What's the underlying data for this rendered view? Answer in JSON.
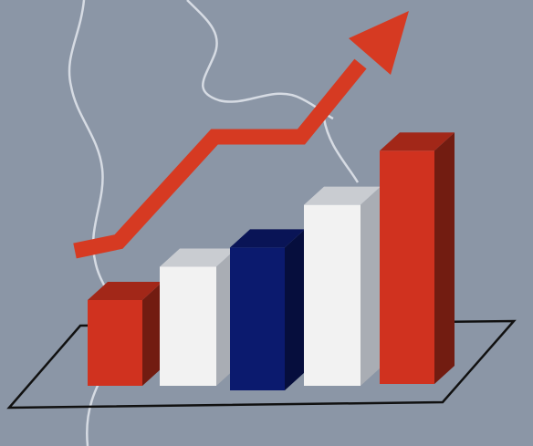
{
  "chart_data": {
    "type": "bar",
    "title": "",
    "xlabel": "",
    "ylabel": "",
    "categories": [
      "",
      "",
      "",
      "",
      ""
    ],
    "values": [
      1.8,
      2.5,
      3.0,
      3.8,
      4.9
    ],
    "ylim": [
      0,
      5
    ],
    "bar_colors": [
      "#d0321f",
      "#f2f2f2",
      "#0b1a6e",
      "#f2f2f2",
      "#d0321f"
    ],
    "style": "3d",
    "trend_arrow": {
      "direction": "up",
      "color": "#d63a22"
    },
    "grid": false,
    "legend": "none"
  },
  "colors": {
    "background": "#8b96a6",
    "map_outline": "#e8ecf2",
    "base_outline": "#111111"
  }
}
